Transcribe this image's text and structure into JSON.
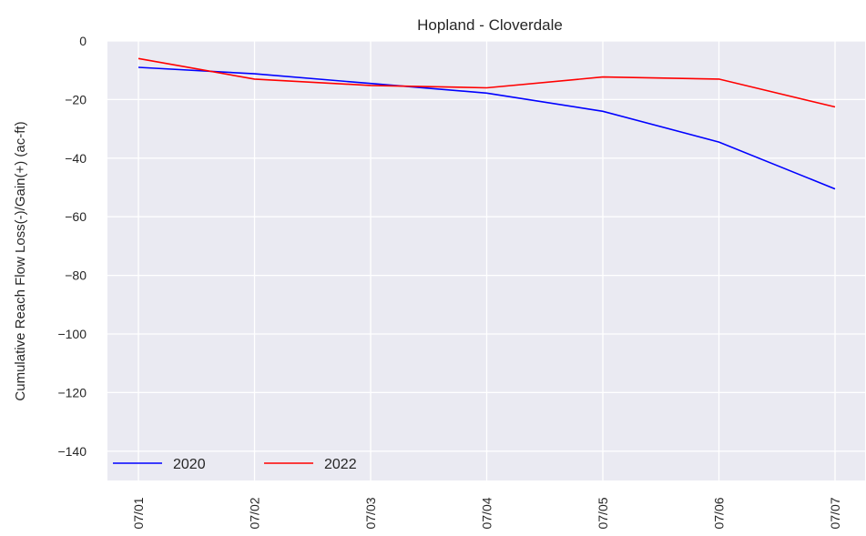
{
  "chart_data": {
    "type": "line",
    "title": "Hopland - Cloverdale",
    "xlabel": "",
    "ylabel": "Cumulative Reach Flow Loss(-)/Gain(+) (ac-ft)",
    "x": [
      "07/01",
      "07/02",
      "07/03",
      "07/04",
      "07/05",
      "07/06",
      "07/07"
    ],
    "ylim": [
      -150,
      0
    ],
    "yticks": [
      0,
      -20,
      -40,
      -60,
      -80,
      -100,
      -120,
      -140
    ],
    "grid": true,
    "legend_position": "lower-left",
    "background": "#eaeaf2",
    "series": [
      {
        "name": "2020",
        "color": "#0000ff",
        "values": [
          -9.0,
          -11.2,
          -14.5,
          -17.8,
          -24.0,
          -34.5,
          -50.5
        ]
      },
      {
        "name": "2022",
        "color": "#ff0000",
        "values": [
          -6.0,
          -13.0,
          -15.2,
          -16.0,
          -12.3,
          -13.0,
          -22.5
        ]
      }
    ]
  }
}
